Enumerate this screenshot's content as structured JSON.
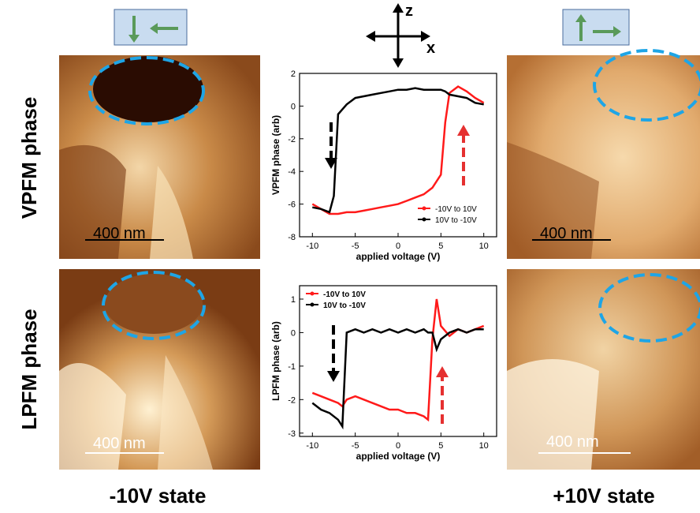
{
  "labels": {
    "row_top": "VPFM phase",
    "row_bottom": "LPFM phase",
    "col_left": "-10V state",
    "col_right": "+10V state",
    "scale_bars": [
      "400 nm",
      "400 nm",
      "400 nm",
      "400 nm"
    ],
    "axis_z": "z",
    "axis_x": "x"
  },
  "chart_data": [
    {
      "type": "line",
      "x_label": "applied voltage (V)",
      "y_label": "VPFM phase (arb)",
      "x": [
        -10,
        -9,
        -8,
        -7.5,
        -7,
        -6,
        -5,
        -4,
        -3,
        -2,
        -1,
        0,
        1,
        2,
        3,
        4,
        5,
        5.5,
        6,
        7,
        8,
        9,
        10
      ],
      "series": [
        {
          "name": "-10V to 10V",
          "color": "#ff1a1a",
          "values": [
            -6.0,
            -6.3,
            -6.6,
            -6.6,
            -6.6,
            -6.5,
            -6.5,
            -6.4,
            -6.3,
            -6.2,
            -6.1,
            -6.0,
            -5.8,
            -5.6,
            -5.4,
            -5.0,
            -4.2,
            -1.0,
            0.8,
            1.2,
            0.9,
            0.5,
            0.2
          ]
        },
        {
          "name": "10V to -10V",
          "color": "#000000",
          "values": [
            -6.2,
            -6.3,
            -6.5,
            -5.5,
            -0.5,
            0.1,
            0.5,
            0.6,
            0.7,
            0.8,
            0.9,
            1.0,
            1.0,
            1.1,
            1.0,
            1.0,
            1.0,
            0.9,
            0.7,
            0.6,
            0.5,
            0.2,
            0.1
          ]
        }
      ],
      "xlim": [
        -11.5,
        11.5
      ],
      "xticks": [
        -10,
        -5,
        0,
        5,
        10
      ],
      "ylim": [
        -8,
        2
      ],
      "yticks": [
        -8,
        -6,
        -4,
        -2,
        0,
        2
      ],
      "legend": "lower-right"
    },
    {
      "type": "line",
      "x_label": "applied voltage (V)",
      "y_label": "LPFM phase (arb)",
      "x": [
        -10,
        -9,
        -8,
        -7,
        -6.5,
        -6,
        -5,
        -4,
        -3,
        -2,
        -1,
        0,
        1,
        2,
        3,
        3.5,
        4,
        4.5,
        5,
        6,
        7,
        8,
        9,
        10
      ],
      "series": [
        {
          "name": "-10V to 10V",
          "color": "#ff1a1a",
          "values": [
            -1.8,
            -1.9,
            -2.0,
            -2.1,
            -2.2,
            -2.0,
            -1.9,
            -2.0,
            -2.1,
            -2.2,
            -2.3,
            -2.3,
            -2.4,
            -2.4,
            -2.5,
            -2.6,
            -0.2,
            1.0,
            0.2,
            -0.1,
            0.1,
            0.0,
            0.1,
            0.2
          ]
        },
        {
          "name": "10V to -10V",
          "color": "#000000",
          "values": [
            -2.1,
            -2.3,
            -2.4,
            -2.6,
            -2.8,
            0.0,
            0.1,
            0.0,
            0.1,
            0.0,
            0.1,
            0.0,
            0.1,
            0.0,
            0.1,
            0.0,
            0.0,
            -0.5,
            -0.2,
            0.0,
            0.1,
            0.0,
            0.1,
            0.1
          ]
        }
      ],
      "xlim": [
        -11.5,
        11.5
      ],
      "xticks": [
        -10,
        -5,
        0,
        5,
        10
      ],
      "ylim": [
        -3.1,
        1.4
      ],
      "yticks": [
        -3,
        -2,
        -1,
        0,
        1
      ],
      "legend": "upper-left"
    }
  ]
}
